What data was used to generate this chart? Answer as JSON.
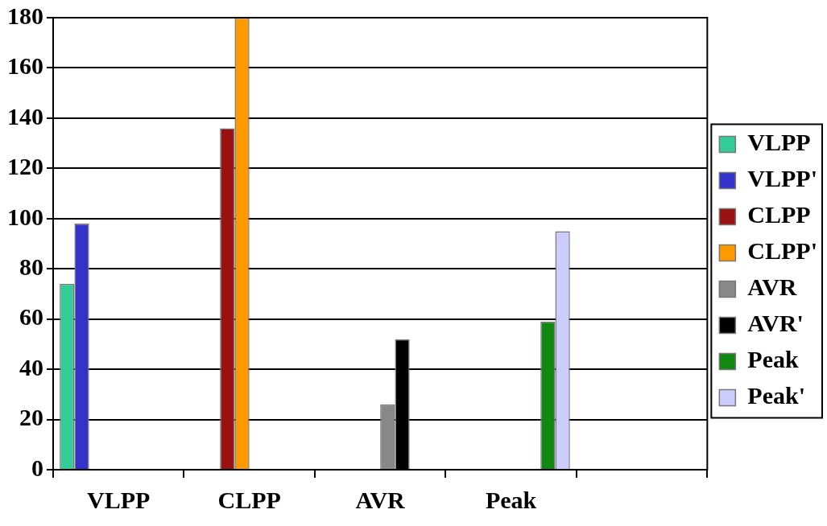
{
  "chart_data": {
    "type": "bar",
    "categories": [
      "VLPP",
      "CLPP",
      "AVR",
      "Peak",
      null
    ],
    "series": [
      {
        "name": "VLPP",
        "color": "#33cc99",
        "values": [
          74,
          null,
          null,
          null,
          null
        ]
      },
      {
        "name": "VLPP'",
        "color": "#3333cc",
        "values": [
          98,
          null,
          null,
          null,
          null
        ]
      },
      {
        "name": "CLPP",
        "color": "#991111",
        "values": [
          null,
          136,
          null,
          null,
          null
        ]
      },
      {
        "name": "CLPP'",
        "color": "#ff9900",
        "values": [
          null,
          180,
          null,
          null,
          null
        ]
      },
      {
        "name": "AVR",
        "color": "#888888",
        "values": [
          null,
          null,
          26,
          null,
          null
        ]
      },
      {
        "name": "AVR'",
        "color": "#000000",
        "values": [
          null,
          null,
          52,
          null,
          null
        ]
      },
      {
        "name": "Peak",
        "color": "#118811",
        "values": [
          null,
          null,
          null,
          59,
          null
        ]
      },
      {
        "name": "Peak'",
        "color": "#ccccff",
        "values": [
          null,
          null,
          null,
          95,
          null
        ]
      }
    ],
    "ylim": [
      0,
      180
    ],
    "yticks": [
      0,
      20,
      40,
      60,
      80,
      100,
      120,
      140,
      160,
      180
    ],
    "grid": "y",
    "legend": "right"
  }
}
